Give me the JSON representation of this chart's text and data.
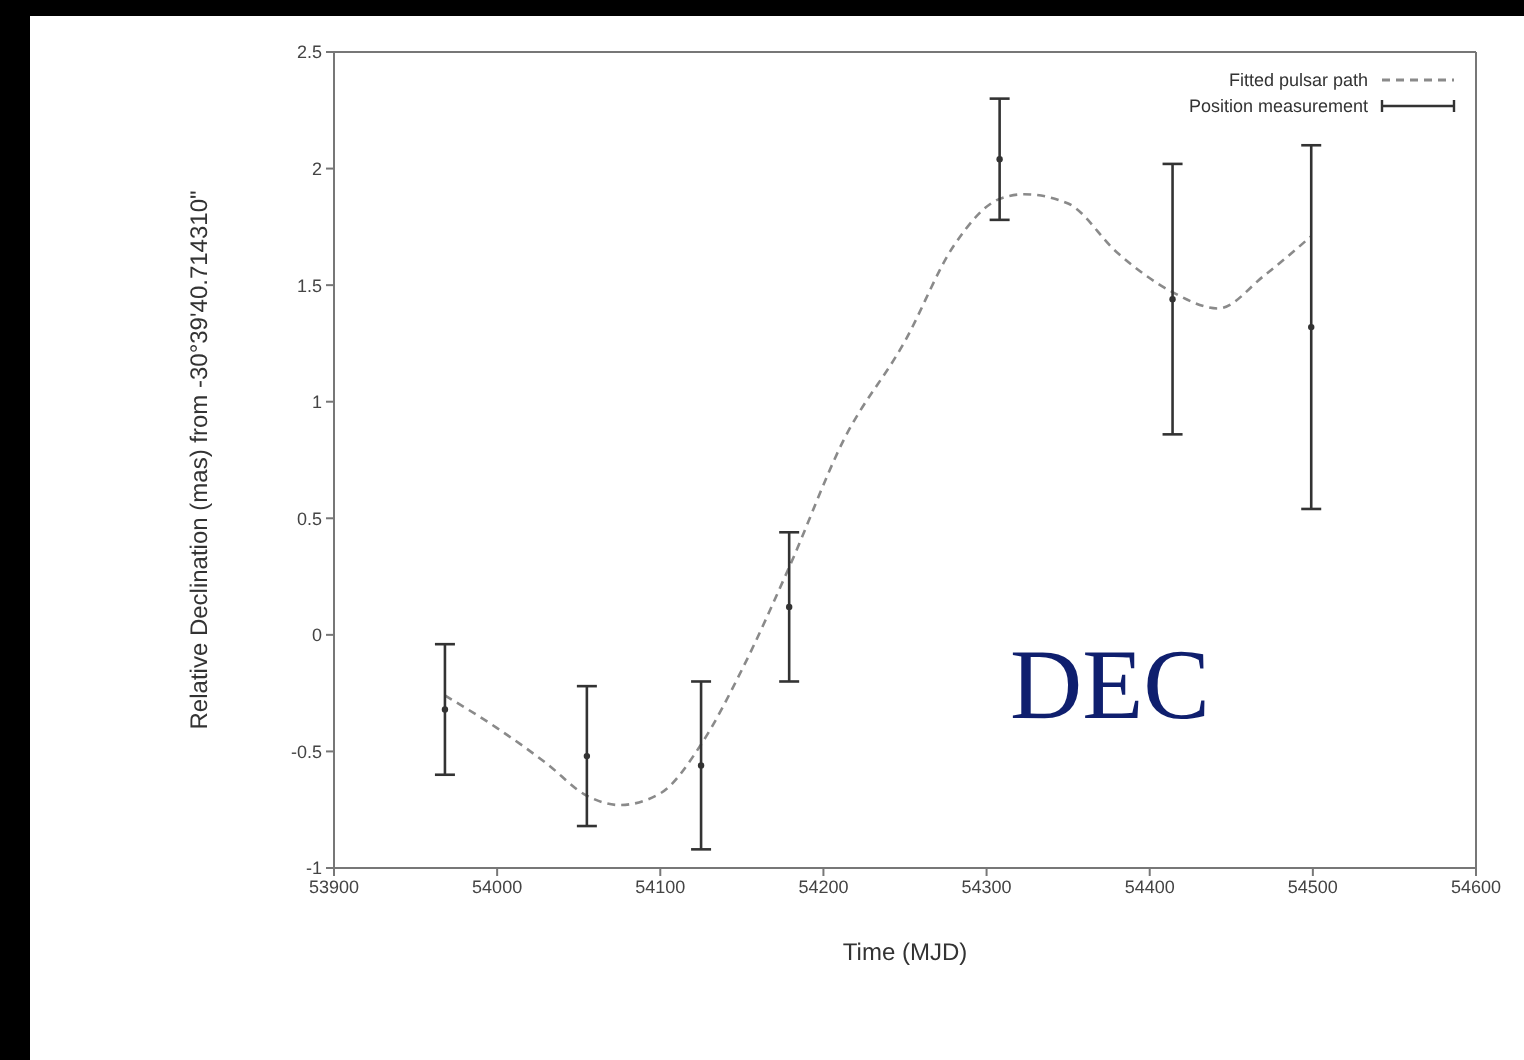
{
  "chart_data": {
    "type": "line",
    "xlabel": "Time (MJD)",
    "ylabel": "Relative Declination (mas) from -30°39'40.714310\"",
    "annotations": [
      "DEC"
    ],
    "xlim": [
      53900,
      54600
    ],
    "xticks": [
      53900,
      54000,
      54100,
      54200,
      54300,
      54400,
      54500,
      54600
    ],
    "ylim": [
      -1,
      2.5
    ],
    "yticks": [
      -1,
      -0.5,
      0,
      0.5,
      1,
      1.5,
      2,
      2.5
    ],
    "grid": false,
    "legend": "top right",
    "series": [
      {
        "name": "Fitted pulsar path",
        "color": "#8a8a8a",
        "line_style": "dashed",
        "marker": "none",
        "x": [
          53968,
          54000,
          54030,
          54055,
          54075,
          54100,
          54125,
          54150,
          54179,
          54212,
          54250,
          54280,
          54308,
          54323,
          54350,
          54380,
          54414,
          54442,
          54470,
          54499
        ],
        "values": [
          -0.26,
          -0.4,
          -0.55,
          -0.69,
          -0.73,
          -0.68,
          -0.47,
          -0.15,
          0.29,
          0.83,
          1.26,
          1.67,
          1.87,
          1.89,
          1.85,
          1.64,
          1.47,
          1.4,
          1.54,
          1.71
        ]
      },
      {
        "name": "Position measurement",
        "type": "scatter",
        "color": "#333333",
        "x": [
          53968,
          54055,
          54125,
          54179,
          54308,
          54414,
          54499
        ],
        "values": [
          -0.32,
          -0.52,
          -0.56,
          0.12,
          2.04,
          1.44,
          1.32
        ],
        "errors": [
          0.28,
          0.3,
          0.36,
          0.32,
          0.26,
          0.58,
          0.78
        ]
      }
    ]
  }
}
